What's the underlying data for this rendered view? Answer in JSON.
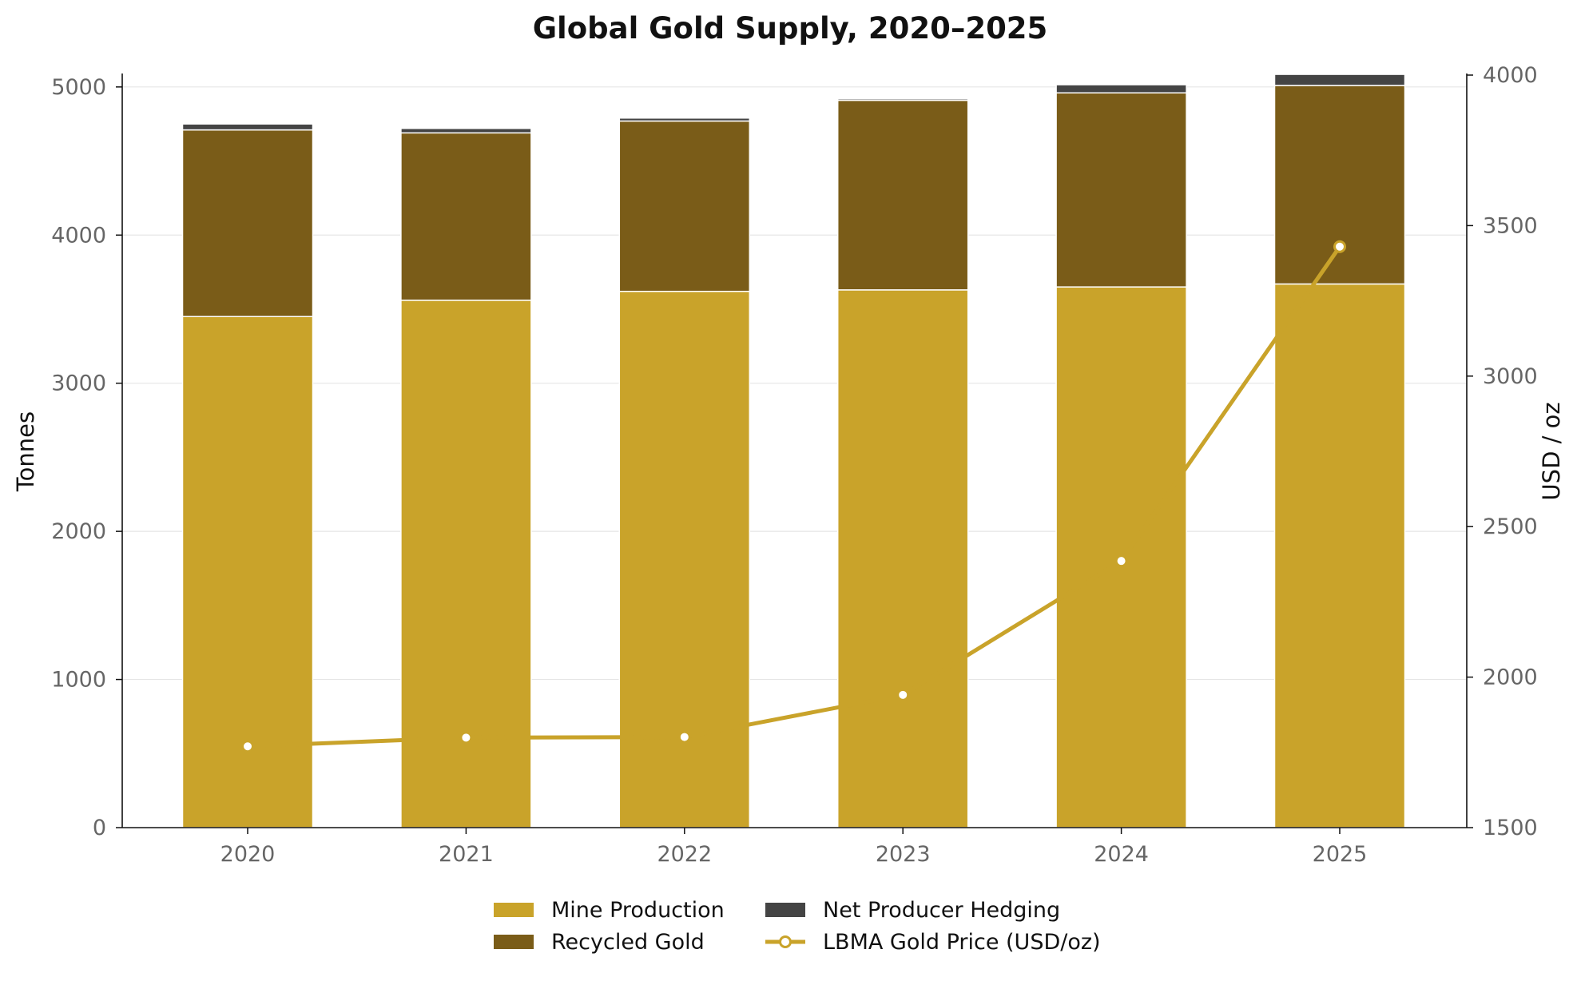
{
  "chart_data": {
    "type": "bar",
    "title": "Global Gold Supply, 2020–2025",
    "categories": [
      "2020",
      "2021",
      "2022",
      "2023",
      "2024",
      "2025"
    ],
    "stacked": true,
    "ylabel": "Tonnes",
    "ylim": [
      0,
      5080
    ],
    "yticks": [
      0,
      1000,
      2000,
      3000,
      4000,
      5000
    ],
    "y2label": "USD / oz",
    "y2lim": [
      1500,
      4000
    ],
    "y2ticks": [
      1500,
      2000,
      2500,
      3000,
      3500,
      4000
    ],
    "grid": true,
    "legend_position": "bottom-center",
    "series": [
      {
        "name": "Mine Production",
        "type": "bar",
        "axis": "left",
        "color": "#c9a32a",
        "values": [
          3450,
          3560,
          3620,
          3630,
          3650,
          3670
        ]
      },
      {
        "name": "Recycled Gold",
        "type": "bar",
        "axis": "left",
        "color": "#7a5c18",
        "values": [
          1260,
          1130,
          1150,
          1280,
          1310,
          1340
        ]
      },
      {
        "name": "Net Producer Hedging",
        "type": "bar",
        "axis": "left",
        "color": "#444444",
        "values": [
          40,
          30,
          20,
          10,
          55,
          75
        ]
      },
      {
        "name": "LBMA Gold Price (USD/oz)",
        "type": "line",
        "axis": "right",
        "color": "#c9a32a",
        "values": [
          1770,
          1799,
          1801,
          1941,
          2386,
          3430
        ]
      }
    ]
  }
}
